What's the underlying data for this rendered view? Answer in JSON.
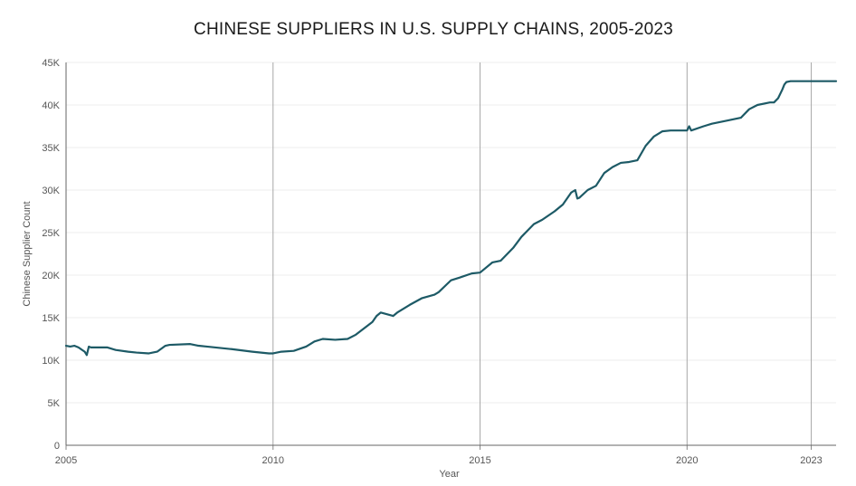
{
  "chart_data": {
    "type": "line",
    "title": "CHINESE SUPPLIERS IN U.S. SUPPLY CHAINS, 2005-2023",
    "xlabel": "Year",
    "ylabel": "Chinese Supplier Count",
    "xlim": [
      2005.0,
      2023.6
    ],
    "ylim": [
      0,
      45000
    ],
    "x_ticks": [
      {
        "value": 2005,
        "label": "2005"
      },
      {
        "value": 2010,
        "label": "2010"
      },
      {
        "value": 2015,
        "label": "2015"
      },
      {
        "value": 2020,
        "label": "2020"
      },
      {
        "value": 2023,
        "label": "2023"
      }
    ],
    "y_ticks": [
      {
        "value": 0,
        "label": "0"
      },
      {
        "value": 5000,
        "label": "5K"
      },
      {
        "value": 10000,
        "label": "10K"
      },
      {
        "value": 15000,
        "label": "15K"
      },
      {
        "value": 20000,
        "label": "20K"
      },
      {
        "value": 25000,
        "label": "25K"
      },
      {
        "value": 30000,
        "label": "30K"
      },
      {
        "value": 35000,
        "label": "35K"
      },
      {
        "value": 40000,
        "label": "40K"
      },
      {
        "value": 45000,
        "label": "45K"
      }
    ],
    "line_color": "#1d5a66",
    "grid_color": "#ececec",
    "major_vline_color": "#a8a8a8",
    "series": [
      {
        "name": "Chinese Supplier Count",
        "x": [
          2005.0,
          2005.1,
          2005.2,
          2005.3,
          2005.45,
          2005.5,
          2005.55,
          2005.6,
          2006.0,
          2006.2,
          2006.5,
          2006.7,
          2007.0,
          2007.2,
          2007.4,
          2007.5,
          2008.0,
          2008.2,
          2008.4,
          2009.0,
          2009.5,
          2009.9,
          2010.0,
          2010.2,
          2010.5,
          2010.8,
          2011.0,
          2011.2,
          2011.5,
          2011.8,
          2012.0,
          2012.4,
          2012.5,
          2012.6,
          2012.9,
          2013.0,
          2013.3,
          2013.6,
          2013.9,
          2014.0,
          2014.3,
          2014.5,
          2014.8,
          2015.0,
          2015.3,
          2015.5,
          2015.8,
          2016.0,
          2016.3,
          2016.5,
          2016.8,
          2017.0,
          2017.2,
          2017.3,
          2017.35,
          2017.4,
          2017.6,
          2017.8,
          2018.0,
          2018.2,
          2018.4,
          2018.6,
          2018.8,
          2019.0,
          2019.2,
          2019.4,
          2019.6,
          2019.8,
          2020.0,
          2020.05,
          2020.1,
          2020.4,
          2020.6,
          2021.0,
          2021.3,
          2021.5,
          2021.7,
          2022.0,
          2022.1,
          2022.2,
          2022.3,
          2022.35,
          2022.4,
          2022.5,
          2022.6,
          2023.0,
          2023.6
        ],
        "values": [
          11700,
          11600,
          11700,
          11500,
          11000,
          10600,
          11600,
          11500,
          11500,
          11200,
          11000,
          10900,
          10800,
          11000,
          11700,
          11800,
          11900,
          11700,
          11600,
          11300,
          11000,
          10800,
          10800,
          11000,
          11100,
          11600,
          12200,
          12500,
          12400,
          12500,
          13000,
          14500,
          15200,
          15600,
          15200,
          15600,
          16500,
          17300,
          17700,
          18000,
          19400,
          19700,
          20200,
          20300,
          21500,
          21700,
          23200,
          24500,
          26000,
          26500,
          27500,
          28300,
          29700,
          30000,
          29000,
          29100,
          30000,
          30500,
          32000,
          32700,
          33200,
          33300,
          33500,
          35200,
          36300,
          36900,
          37000,
          37000,
          37000,
          37500,
          37000,
          37500,
          37800,
          38200,
          38500,
          39500,
          40000,
          40300,
          40300,
          40800,
          41800,
          42400,
          42700,
          42800,
          42800,
          42800,
          42800
        ]
      }
    ]
  }
}
